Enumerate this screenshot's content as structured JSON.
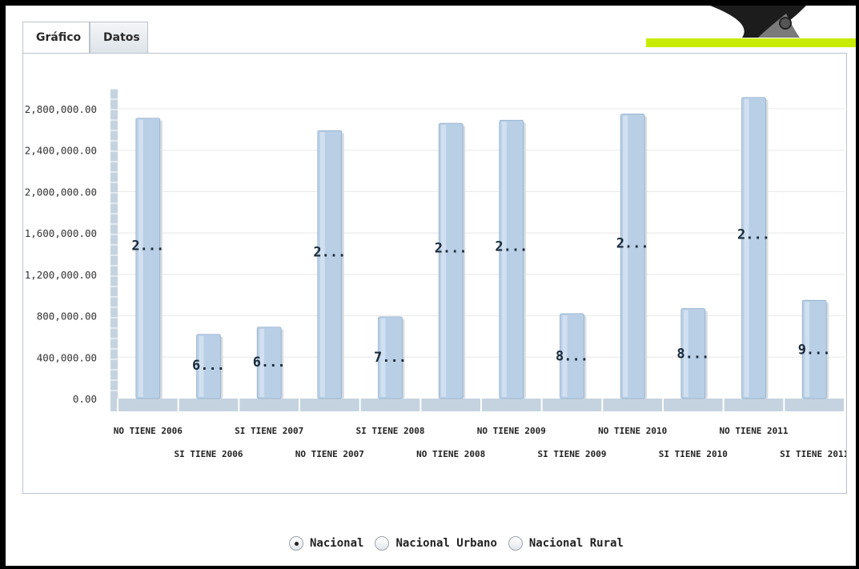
{
  "tabs": [
    {
      "label": "Gráfico",
      "active": true
    },
    {
      "label": "Datos",
      "active": false
    }
  ],
  "colors": {
    "bar": "#b8cfe6",
    "bar_edge": "#7f9fc0",
    "accent_bar": "#c8ec00",
    "grid": "#e8e8e8"
  },
  "chart_data": {
    "type": "bar",
    "categories": [
      "NO TIENE 2006",
      "SI TIENE 2006",
      "SI TIENE 2007",
      "NO TIENE 2007",
      "SI TIENE 2008",
      "NO TIENE 2008",
      "NO TIENE 2009",
      "SI TIENE 2009",
      "NO TIENE 2010",
      "SI TIENE 2010",
      "NO TIENE 2011",
      "SI TIENE 2011"
    ],
    "values": [
      2710000,
      620000,
      690000,
      2590000,
      790000,
      2660000,
      2690000,
      820000,
      2750000,
      870000,
      2910000,
      950000
    ],
    "data_labels": [
      "2...",
      "6...",
      "6...",
      "2...",
      "7...",
      "2...",
      "2...",
      "8...",
      "2...",
      "8...",
      "2...",
      "9..."
    ],
    "yticks": [
      "0.00",
      "400,000.00",
      "800,000.00",
      "1,200,000.00",
      "1,600,000.00",
      "2,000,000.00",
      "2,400,000.00",
      "2,800,000.00"
    ],
    "ylim": [
      0,
      2800000
    ],
    "title": "",
    "xlabel": "",
    "ylabel": "",
    "grid": true,
    "legend": "none"
  },
  "radio_group": {
    "options": [
      {
        "label": "Nacional",
        "checked": true
      },
      {
        "label": "Nacional Urbano",
        "checked": false
      },
      {
        "label": "Nacional Rural",
        "checked": false
      }
    ]
  }
}
